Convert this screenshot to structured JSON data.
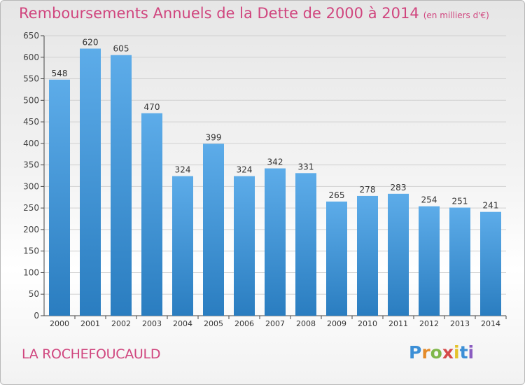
{
  "header": {
    "title": "Remboursements Annuels de la Dette de 2000 à 2014",
    "unit": "(en milliers d'€)"
  },
  "footer": {
    "commune": "LA ROCHEFOUCAULD",
    "logo_text": "Proxiti"
  },
  "colors": {
    "title": "#d0457e",
    "bar_light": "#5dace9",
    "bar_dark": "#2a7dc0",
    "grid": "#d0d0d0"
  },
  "chart_data": {
    "type": "bar",
    "title": "Remboursements Annuels de la Dette de 2000 à 2014",
    "xlabel": "",
    "ylabel": "",
    "ylim": [
      0,
      650
    ],
    "yticks": [
      0,
      50,
      100,
      150,
      200,
      250,
      300,
      350,
      400,
      450,
      500,
      550,
      600,
      650
    ],
    "grid": true,
    "categories": [
      "2000",
      "2001",
      "2002",
      "2003",
      "2004",
      "2005",
      "2006",
      "2007",
      "2008",
      "2009",
      "2010",
      "2011",
      "2012",
      "2013",
      "2014"
    ],
    "values": [
      548,
      620,
      605,
      470,
      324,
      399,
      324,
      342,
      331,
      265,
      278,
      283,
      254,
      251,
      241
    ]
  }
}
